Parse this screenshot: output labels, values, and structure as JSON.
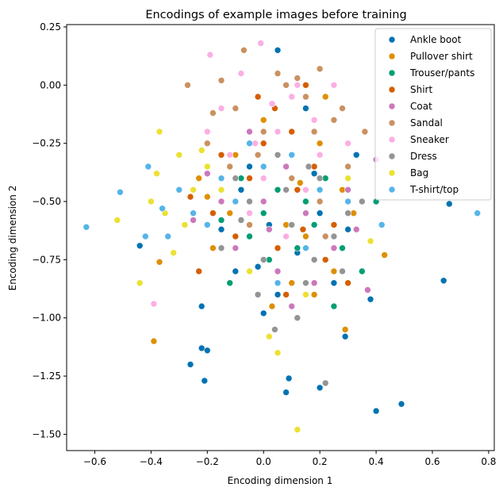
{
  "chart_data": {
    "type": "scatter",
    "title": "Encodings of example images before training",
    "xlabel": "Encoding dimension 1",
    "ylabel": "Encoding dimension 2",
    "xlim": [
      -0.7,
      0.82
    ],
    "ylim": [
      -1.57,
      0.26
    ],
    "xticks": [
      -0.6,
      -0.4,
      -0.2,
      0.0,
      0.2,
      0.4,
      0.6,
      0.8
    ],
    "xtick_labels": [
      "−0.6",
      "−0.4",
      "−0.2",
      "0.0",
      "0.2",
      "0.4",
      "0.6",
      "0.8"
    ],
    "yticks": [
      0.25,
      0.0,
      -0.25,
      -0.5,
      -0.75,
      -1.0,
      -1.25,
      -1.5
    ],
    "ytick_labels": [
      "0.25",
      "0.00",
      "−0.25",
      "−0.50",
      "−0.75",
      "−1.00",
      "−1.25",
      "−1.50"
    ],
    "grid": false,
    "legend_position": "top-right",
    "series": [
      {
        "name": "Ankle boot",
        "color": "#0173b2",
        "points": [
          [
            0.66,
            -0.51
          ],
          [
            0.64,
            -0.84
          ],
          [
            0.49,
            -1.37
          ],
          [
            0.4,
            -1.4
          ],
          [
            0.38,
            -0.92
          ],
          [
            -0.26,
            -1.2
          ],
          [
            -0.21,
            -1.27
          ],
          [
            -0.22,
            -1.13
          ],
          [
            -0.2,
            -1.14
          ],
          [
            0.09,
            -1.26
          ],
          [
            0.08,
            -1.32
          ],
          [
            0.2,
            -1.3
          ],
          [
            0.29,
            -1.08
          ],
          [
            0.05,
            0.15
          ],
          [
            0.15,
            -0.1
          ],
          [
            -0.44,
            -0.69
          ],
          [
            -0.22,
            -0.95
          ],
          [
            0.33,
            -0.3
          ],
          [
            -0.08,
            -0.45
          ],
          [
            0.02,
            -0.6
          ],
          [
            0.12,
            -0.72
          ],
          [
            0.2,
            -0.55
          ],
          [
            -0.15,
            -0.62
          ],
          [
            0.25,
            -0.85
          ],
          [
            0.05,
            -0.9
          ],
          [
            -0.05,
            -0.35
          ],
          [
            0.1,
            -0.4
          ],
          [
            -0.02,
            -0.78
          ],
          [
            0.18,
            -0.38
          ],
          [
            -0.1,
            -0.8
          ],
          [
            0.3,
            -0.62
          ],
          [
            0.0,
            -0.98
          ]
        ]
      },
      {
        "name": "Pullover shirt",
        "color": "#de8f05",
        "points": [
          [
            -0.37,
            -0.76
          ],
          [
            -0.39,
            -1.1
          ],
          [
            0.43,
            -0.73
          ],
          [
            0.29,
            -1.05
          ],
          [
            -0.23,
            -0.4
          ],
          [
            0.22,
            -0.05
          ],
          [
            0.05,
            -0.3
          ],
          [
            -0.12,
            -0.55
          ],
          [
            0.15,
            -0.65
          ],
          [
            0.0,
            -0.15
          ],
          [
            0.28,
            -0.45
          ],
          [
            -0.18,
            -0.7
          ],
          [
            0.1,
            -0.85
          ],
          [
            -0.05,
            -0.5
          ],
          [
            0.2,
            -0.25
          ],
          [
            0.08,
            -0.6
          ],
          [
            -0.1,
            -0.3
          ],
          [
            0.25,
            -0.8
          ],
          [
            0.03,
            -0.95
          ],
          [
            0.13,
            -0.42
          ],
          [
            -0.2,
            -0.48
          ],
          [
            0.18,
            -0.9
          ],
          [
            0.32,
            -0.55
          ]
        ]
      },
      {
        "name": "Trouser/pants",
        "color": "#029e73",
        "points": [
          [
            0.36,
            -0.2
          ],
          [
            0.35,
            -0.8
          ],
          [
            0.4,
            -0.5
          ],
          [
            0.12,
            -0.7
          ],
          [
            -0.05,
            -0.65
          ],
          [
            0.22,
            -0.4
          ],
          [
            0.05,
            -0.45
          ],
          [
            -0.12,
            -0.85
          ],
          [
            0.28,
            -0.7
          ],
          [
            0.0,
            -0.55
          ],
          [
            0.18,
            -0.6
          ],
          [
            -0.08,
            -0.4
          ],
          [
            0.1,
            -0.3
          ],
          [
            0.25,
            -0.95
          ],
          [
            0.15,
            -0.5
          ],
          [
            -0.15,
            -0.58
          ],
          [
            0.3,
            -0.35
          ],
          [
            0.02,
            -0.75
          ]
        ]
      },
      {
        "name": "Shirt",
        "color": "#d55e00",
        "points": [
          [
            -0.26,
            -0.48
          ],
          [
            -0.23,
            -0.8
          ],
          [
            0.1,
            -0.2
          ],
          [
            -0.05,
            -0.4
          ],
          [
            0.2,
            -0.5
          ],
          [
            0.15,
            0.0
          ],
          [
            0.05,
            -0.7
          ],
          [
            -0.15,
            -0.3
          ],
          [
            0.25,
            -0.6
          ],
          [
            0.0,
            -0.25
          ],
          [
            0.3,
            -0.85
          ],
          [
            -0.1,
            -0.65
          ],
          [
            0.12,
            -0.45
          ],
          [
            0.08,
            -0.9
          ],
          [
            -0.02,
            -0.05
          ],
          [
            0.18,
            -0.35
          ],
          [
            0.22,
            -0.75
          ],
          [
            -0.18,
            -0.55
          ],
          [
            0.04,
            -0.1
          ],
          [
            0.14,
            -0.62
          ]
        ]
      },
      {
        "name": "Coat",
        "color": "#cc78bc",
        "points": [
          [
            0.4,
            -0.32
          ],
          [
            0.37,
            -0.88
          ],
          [
            -0.2,
            -0.38
          ],
          [
            -0.1,
            -0.7
          ],
          [
            0.05,
            -0.8
          ],
          [
            0.2,
            -0.3
          ],
          [
            0.15,
            -0.55
          ],
          [
            -0.05,
            -0.2
          ],
          [
            0.3,
            -0.45
          ],
          [
            0.0,
            -0.5
          ],
          [
            0.25,
            -0.7
          ],
          [
            -0.15,
            -0.5
          ],
          [
            0.1,
            -0.95
          ],
          [
            -0.25,
            -0.58
          ],
          [
            0.08,
            -0.35
          ],
          [
            0.18,
            -0.85
          ],
          [
            0.02,
            -0.62
          ],
          [
            0.33,
            -0.62
          ]
        ]
      },
      {
        "name": "Sandal",
        "color": "#ca9161",
        "points": [
          [
            -0.27,
            0.0
          ],
          [
            -0.07,
            0.15
          ],
          [
            0.2,
            0.07
          ],
          [
            0.36,
            -0.2
          ],
          [
            -0.15,
            0.02
          ],
          [
            0.05,
            0.05
          ],
          [
            0.15,
            -0.05
          ],
          [
            -0.1,
            -0.1
          ],
          [
            0.25,
            -0.15
          ],
          [
            0.0,
            -0.2
          ],
          [
            0.3,
            -0.35
          ],
          [
            -0.2,
            -0.25
          ],
          [
            0.1,
            -0.4
          ],
          [
            -0.05,
            -0.6
          ],
          [
            0.2,
            -0.5
          ],
          [
            0.08,
            0.0
          ],
          [
            -0.12,
            -0.35
          ],
          [
            0.28,
            -0.1
          ],
          [
            0.12,
            0.03
          ],
          [
            -0.02,
            -0.3
          ],
          [
            0.18,
            -0.2
          ],
          [
            -0.18,
            -0.12
          ],
          [
            0.22,
            -0.65
          ]
        ]
      },
      {
        "name": "Sneaker",
        "color": "#fbafe4",
        "points": [
          [
            -0.39,
            -0.94
          ],
          [
            -0.19,
            0.13
          ],
          [
            -0.01,
            0.18
          ],
          [
            0.12,
            0.0
          ],
          [
            -0.15,
            -0.1
          ],
          [
            0.05,
            -0.2
          ],
          [
            0.2,
            -0.3
          ],
          [
            -0.08,
            0.05
          ],
          [
            0.25,
            0.0
          ],
          [
            0.0,
            -0.4
          ],
          [
            0.15,
            -0.45
          ],
          [
            -0.2,
            -0.2
          ],
          [
            0.1,
            -0.05
          ],
          [
            -0.05,
            -0.55
          ],
          [
            0.3,
            -0.25
          ],
          [
            0.08,
            -0.65
          ],
          [
            -0.12,
            -0.3
          ],
          [
            0.18,
            -0.15
          ],
          [
            0.03,
            -0.08
          ],
          [
            -0.03,
            -0.25
          ]
        ]
      },
      {
        "name": "Dress",
        "color": "#949494",
        "points": [
          [
            0.22,
            -1.28
          ],
          [
            0.35,
            -0.5
          ],
          [
            -0.05,
            -0.5
          ],
          [
            0.1,
            -0.6
          ],
          [
            0.2,
            -0.4
          ],
          [
            0.0,
            -0.75
          ],
          [
            0.15,
            -0.85
          ],
          [
            -0.1,
            -0.4
          ],
          [
            0.25,
            -0.65
          ],
          [
            0.05,
            -0.3
          ],
          [
            -0.15,
            -0.7
          ],
          [
            0.3,
            -0.55
          ],
          [
            0.12,
            -1.0
          ],
          [
            0.08,
            -0.45
          ],
          [
            -0.02,
            -0.9
          ],
          [
            0.18,
            -0.75
          ],
          [
            -0.08,
            -0.58
          ],
          [
            0.28,
            -0.8
          ],
          [
            0.04,
            -1.05
          ],
          [
            0.16,
            -0.35
          ]
        ]
      },
      {
        "name": "Bag",
        "color": "#ece133",
        "points": [
          [
            -0.52,
            -0.58
          ],
          [
            -0.44,
            -0.85
          ],
          [
            -0.37,
            -0.2
          ],
          [
            0.12,
            -1.48
          ],
          [
            0.38,
            -0.67
          ],
          [
            -0.3,
            -0.3
          ],
          [
            -0.25,
            -0.45
          ],
          [
            -0.35,
            -0.55
          ],
          [
            -0.2,
            -0.35
          ],
          [
            -0.28,
            -0.6
          ],
          [
            0.05,
            -1.15
          ],
          [
            -0.4,
            -0.5
          ],
          [
            -0.32,
            -0.72
          ],
          [
            -0.22,
            -0.28
          ],
          [
            0.3,
            -0.4
          ],
          [
            0.02,
            -1.08
          ],
          [
            -0.15,
            -0.45
          ],
          [
            -0.38,
            -0.38
          ],
          [
            0.15,
            -0.9
          ],
          [
            -0.05,
            -0.8
          ]
        ]
      },
      {
        "name": "T-shirt/top",
        "color": "#56b4e9",
        "points": [
          [
            -0.63,
            -0.61
          ],
          [
            -0.51,
            -0.46
          ],
          [
            -0.41,
            -0.35
          ],
          [
            -0.42,
            -0.65
          ],
          [
            -0.36,
            -0.53
          ],
          [
            -0.34,
            -0.65
          ],
          [
            0.42,
            -0.6
          ],
          [
            0.76,
            -0.55
          ],
          [
            -0.3,
            -0.45
          ],
          [
            -0.25,
            -0.55
          ],
          [
            -0.2,
            -0.6
          ],
          [
            0.2,
            -0.45
          ],
          [
            0.1,
            -0.3
          ],
          [
            0.0,
            -0.35
          ],
          [
            -0.1,
            -0.5
          ],
          [
            0.3,
            -0.5
          ],
          [
            0.15,
            -0.7
          ],
          [
            -0.05,
            -0.25
          ],
          [
            0.05,
            -0.85
          ],
          [
            -0.15,
            -0.4
          ]
        ]
      }
    ]
  }
}
